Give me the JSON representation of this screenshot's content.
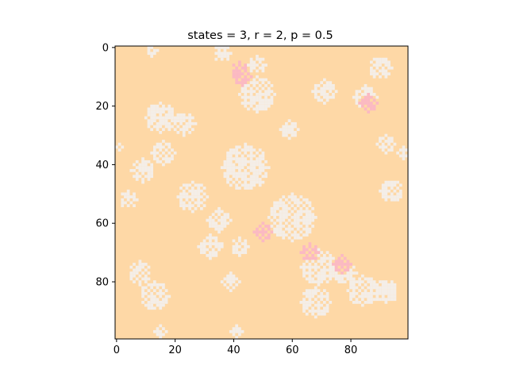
{
  "chart_data": {
    "type": "heatmap",
    "title": "states = 3, r = 2, p = 0.5",
    "xlabel": "",
    "ylabel": "",
    "grid_size": [
      100,
      100
    ],
    "xlim": [
      -0.5,
      99.5
    ],
    "ylim": [
      99.5,
      -0.5
    ],
    "x_ticks": [
      0,
      20,
      40,
      60,
      80
    ],
    "y_ticks": [
      0,
      20,
      40,
      60,
      80
    ],
    "x_tick_labels": [
      "0",
      "20",
      "40",
      "60",
      "80"
    ],
    "y_tick_labels": [
      "0",
      "20",
      "40",
      "60",
      "80"
    ],
    "grid": false,
    "legend": "none",
    "colors": {
      "state_0": "#fed8a6",
      "state_1": "#f4eee8",
      "state_2": "#fbb9c3"
    },
    "white_blobs": [
      {
        "cx": 12,
        "cy": 1,
        "r": 2
      },
      {
        "cx": 36,
        "cy": 2,
        "r": 3
      },
      {
        "cx": 48,
        "cy": 6,
        "r": 3
      },
      {
        "cx": 90,
        "cy": 7,
        "r": 4
      },
      {
        "cx": 48,
        "cy": 16,
        "r": 6
      },
      {
        "cx": 71,
        "cy": 15,
        "r": 4
      },
      {
        "cx": 85,
        "cy": 17,
        "r": 4
      },
      {
        "cx": 15,
        "cy": 24,
        "r": 5
      },
      {
        "cx": 23,
        "cy": 26,
        "r": 4
      },
      {
        "cx": 59,
        "cy": 28,
        "r": 3
      },
      {
        "cx": 92,
        "cy": 33,
        "r": 3
      },
      {
        "cx": 98,
        "cy": 36,
        "r": 2
      },
      {
        "cx": 16,
        "cy": 36,
        "r": 4
      },
      {
        "cx": 9,
        "cy": 42,
        "r": 4
      },
      {
        "cx": 44,
        "cy": 41,
        "r": 8
      },
      {
        "cx": 26,
        "cy": 51,
        "r": 5
      },
      {
        "cx": 4,
        "cy": 52,
        "r": 3
      },
      {
        "cx": 94,
        "cy": 49,
        "r": 4
      },
      {
        "cx": 35,
        "cy": 59,
        "r": 4
      },
      {
        "cx": 60,
        "cy": 58,
        "r": 8
      },
      {
        "cx": 32,
        "cy": 68,
        "r": 4
      },
      {
        "cx": 42,
        "cy": 68,
        "r": 3
      },
      {
        "cx": 8,
        "cy": 77,
        "r": 4
      },
      {
        "cx": 69,
        "cy": 75,
        "r": 6
      },
      {
        "cx": 78,
        "cy": 77,
        "r": 4
      },
      {
        "cx": 13,
        "cy": 85,
        "r": 5
      },
      {
        "cx": 39,
        "cy": 80,
        "r": 3
      },
      {
        "cx": 68,
        "cy": 87,
        "r": 5
      },
      {
        "cx": 84,
        "cy": 83,
        "r": 5
      },
      {
        "cx": 92,
        "cy": 83,
        "r": 4
      },
      {
        "cx": 15,
        "cy": 97,
        "r": 2
      },
      {
        "cx": 41,
        "cy": 97,
        "r": 2
      },
      {
        "cx": 1,
        "cy": 34,
        "r": 1
      }
    ],
    "pink_blobs": [
      {
        "cx": 42,
        "cy": 8,
        "r": 3
      },
      {
        "cx": 43,
        "cy": 10,
        "r": 3
      },
      {
        "cx": 86,
        "cy": 19,
        "r": 3
      },
      {
        "cx": 50,
        "cy": 63,
        "r": 3
      },
      {
        "cx": 66,
        "cy": 70,
        "r": 3
      },
      {
        "cx": 77,
        "cy": 74,
        "r": 3
      }
    ],
    "white_stripes": [
      {
        "x0": 88,
        "x1": 95,
        "y": 82
      },
      {
        "x0": 88,
        "x1": 95,
        "y": 84
      },
      {
        "x0": 88,
        "x1": 95,
        "y": 86
      },
      {
        "x0": 72,
        "x1": 80,
        "y": 78
      },
      {
        "x0": 30,
        "x1": 36,
        "y": 67
      }
    ]
  }
}
